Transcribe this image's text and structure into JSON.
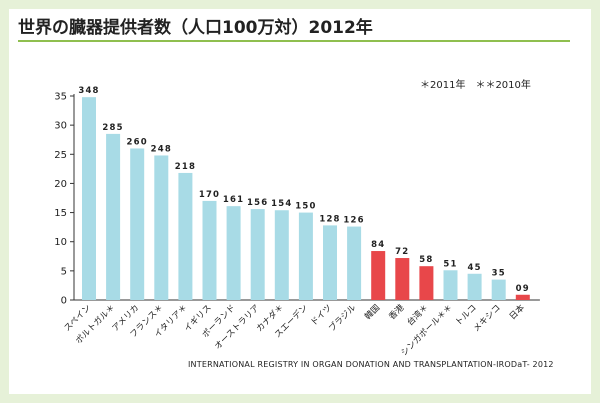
{
  "title": "世界の臓器提供者数（人口100万対）2012年",
  "legend_note": "＊2011年　＊＊2010年",
  "source": "INTERNATIONAL REGISTRY IN ORGAN DONATION AND TRANSPLANTATION-IRODaT- 2012",
  "colors": {
    "bar_default": "#a8dbe6",
    "bar_highlight": "#e8474a",
    "title_rule": "#8fbf4f",
    "background": "#e6f1d8"
  },
  "chart_data": {
    "type": "bar",
    "categories": [
      "スペイン",
      "ポルトガル＊",
      "アメリカ",
      "フランス＊",
      "イタリア＊",
      "イギリス",
      "ポーランド",
      "オーストラリア",
      "カナダ＊",
      "スエーデン",
      "ドイツ",
      "ブラジル",
      "韓国",
      "香港",
      "台湾＊",
      "シンガポール＊＊",
      "トルコ",
      "メキシコ",
      "日本"
    ],
    "values": [
      34.8,
      28.5,
      26.0,
      24.8,
      21.8,
      17.0,
      16.1,
      15.6,
      15.4,
      15.0,
      12.8,
      12.6,
      8.4,
      7.2,
      5.8,
      5.1,
      4.5,
      3.5,
      0.9
    ],
    "value_labels": [
      "348",
      "285",
      "260",
      "248",
      "218",
      "170",
      "161",
      "156",
      "154",
      "150",
      "128",
      "126",
      "84",
      "72",
      "58",
      "51",
      "45",
      "35",
      "09"
    ],
    "highlight": [
      false,
      false,
      false,
      false,
      false,
      false,
      false,
      false,
      false,
      false,
      false,
      false,
      true,
      true,
      true,
      false,
      false,
      false,
      true
    ],
    "ylim": [
      0,
      35
    ],
    "yticks": [
      0,
      5,
      10,
      15,
      20,
      25,
      30,
      35
    ],
    "ytick_labels": [
      "0",
      "5",
      "10",
      "15",
      "20",
      "25",
      "30",
      "35"
    ],
    "grid": false,
    "xlabel": "",
    "ylabel": ""
  }
}
